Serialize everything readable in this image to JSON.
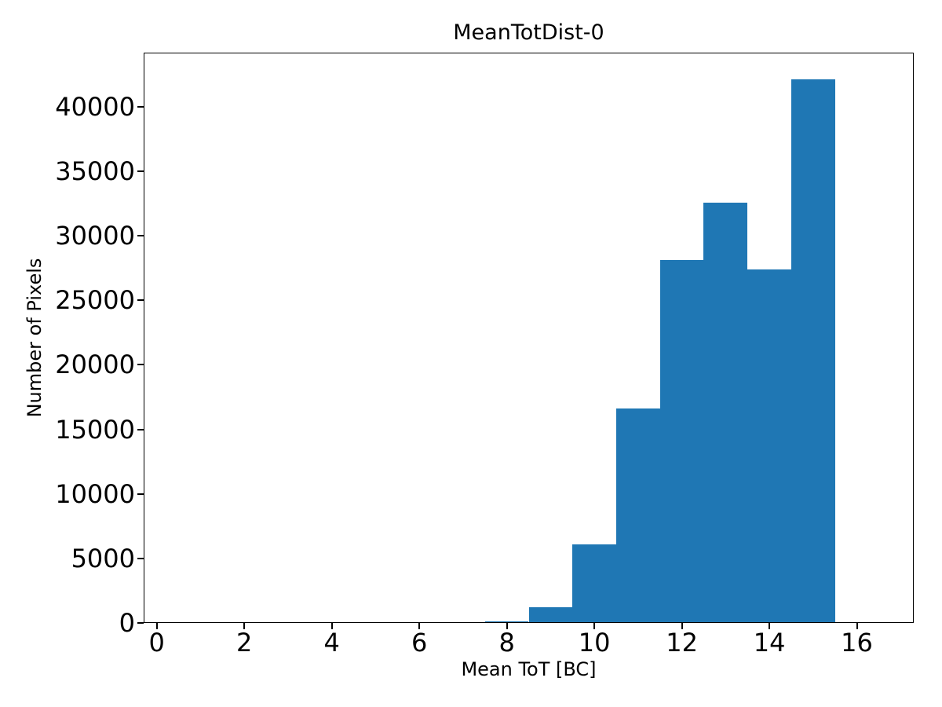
{
  "figure": {
    "background_color": "#ffffff",
    "text_color": "#000000"
  },
  "chart_data": {
    "type": "bar",
    "subtype": "histogram",
    "title": "MeanTotDist-0",
    "xlabel": "Mean ToT [BC]",
    "ylabel": "Number of Pixels",
    "bar_color": "#1f77b4",
    "bin_edges": [
      7.5,
      8.5,
      9.5,
      10.5,
      11.5,
      12.5,
      13.5,
      14.5,
      15.5
    ],
    "values": [
      150,
      1200,
      6100,
      16600,
      28100,
      32600,
      27400,
      42100
    ],
    "xlim": [
      -0.3,
      17.3
    ],
    "ylim": [
      0,
      44200
    ],
    "xticks": [
      0,
      2,
      4,
      6,
      8,
      10,
      12,
      14,
      16
    ],
    "yticks": [
      0,
      5000,
      10000,
      15000,
      20000,
      25000,
      30000,
      35000,
      40000
    ],
    "grid": false,
    "legend": null
  }
}
